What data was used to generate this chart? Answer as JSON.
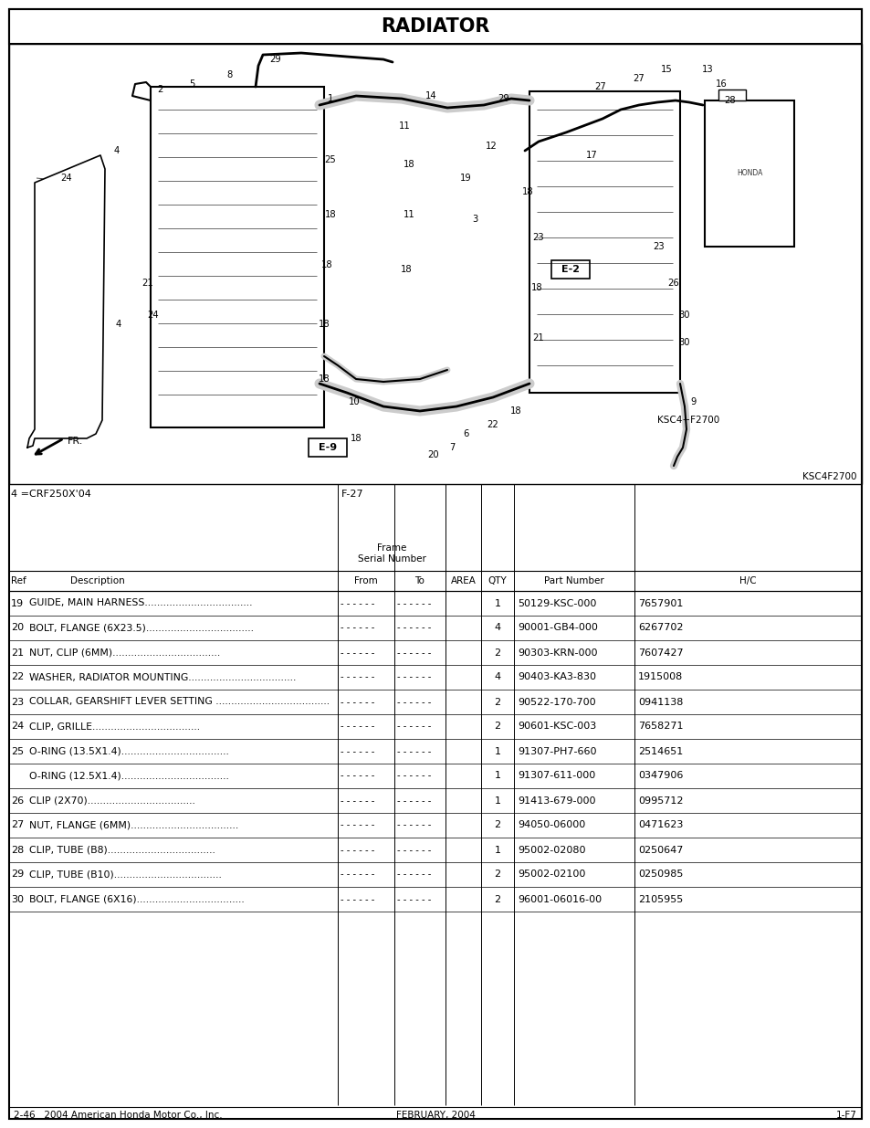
{
  "title": "RADIATOR",
  "page_note_left": "4 =CRF250X'04",
  "page_note_right": "F-27",
  "diagram_label_br": "KSC4F2700",
  "diagram_label_inner": "KSC4−F2700",
  "frame_serial_label": "Frame\nSerial Number",
  "parts": [
    {
      "ref": "19",
      "desc": "GUIDE, MAIN HARNESS",
      "dots": true,
      "qty": "1",
      "part": "50129-KSC-000",
      "hc": "7657901"
    },
    {
      "ref": "20",
      "desc": "BOLT, FLANGE (6X23.5)",
      "dots": true,
      "qty": "4",
      "part": "90001-GB4-000",
      "hc": "6267702"
    },
    {
      "ref": "21",
      "desc": "NUT, CLIP (6MM)",
      "dots": true,
      "qty": "2",
      "part": "90303-KRN-000",
      "hc": "7607427"
    },
    {
      "ref": "22",
      "desc": "WASHER, RADIATOR MOUNTING",
      "dots": true,
      "qty": "4",
      "part": "90403-KA3-830",
      "hc": "1915008"
    },
    {
      "ref": "23",
      "desc": "COLLAR, GEARSHIFT LEVER SETTING ..",
      "dots": true,
      "qty": "2",
      "part": "90522-170-700",
      "hc": "0941138"
    },
    {
      "ref": "24",
      "desc": "CLIP, GRILLE",
      "dots": true,
      "qty": "2",
      "part": "90601-KSC-003",
      "hc": "7658271"
    },
    {
      "ref": "25",
      "desc": "O-RING (13.5X1.4)",
      "dots": true,
      "qty": "1",
      "part": "91307-PH7-660",
      "hc": "2514651"
    },
    {
      "ref": "",
      "desc": "O-RING (12.5X1.4)",
      "dots": true,
      "qty": "1",
      "part": "91307-611-000",
      "hc": "0347906"
    },
    {
      "ref": "26",
      "desc": "CLIP (2X70)",
      "dots": true,
      "qty": "1",
      "part": "91413-679-000",
      "hc": "0995712"
    },
    {
      "ref": "27",
      "desc": "NUT, FLANGE (6MM)",
      "dots": true,
      "qty": "2",
      "part": "94050-06000",
      "hc": "0471623"
    },
    {
      "ref": "28",
      "desc": "CLIP, TUBE (B8)",
      "dots": true,
      "qty": "1",
      "part": "95002-02080",
      "hc": "0250647"
    },
    {
      "ref": "29",
      "desc": "CLIP, TUBE (B10)",
      "dots": true,
      "qty": "2",
      "part": "95002-02100",
      "hc": "0250985"
    },
    {
      "ref": "30",
      "desc": "BOLT, FLANGE (6X16)",
      "dots": true,
      "qty": "2",
      "part": "96001-06016-00",
      "hc": "2105955"
    }
  ],
  "footer_left": "2-46   2004 American Honda Motor Co., Inc.",
  "footer_center": "FEBRUARY, 2004",
  "footer_right": "1-F7"
}
